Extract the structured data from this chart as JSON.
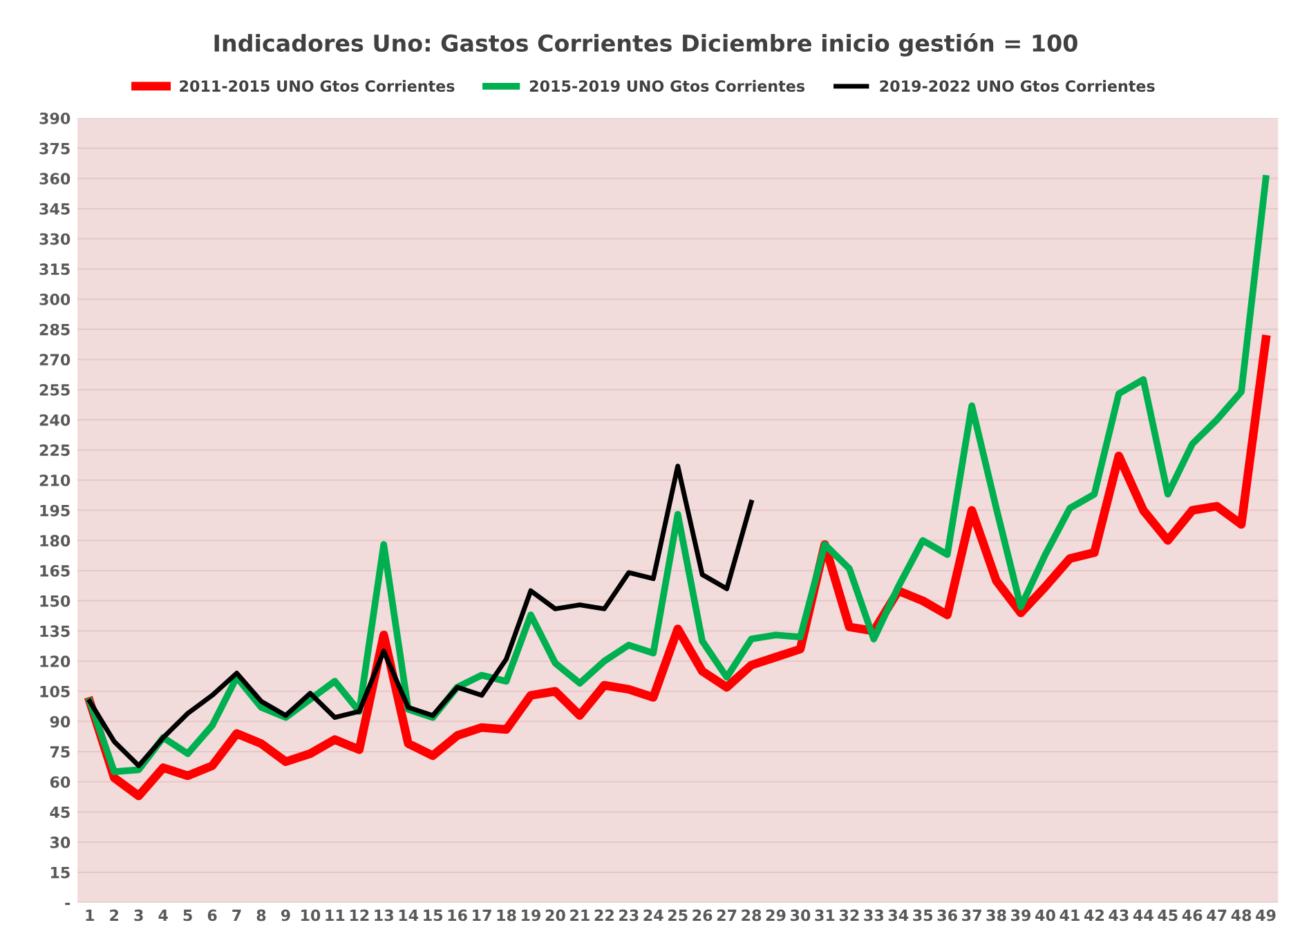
{
  "chart_data": {
    "type": "line",
    "title": "Indicadores Uno: Gastos Corrientes Diciembre inicio gestión = 100",
    "categories": [
      "1",
      "2",
      "3",
      "4",
      "5",
      "6",
      "7",
      "8",
      "9",
      "10",
      "11",
      "12",
      "13",
      "14",
      "15",
      "16",
      "17",
      "18",
      "19",
      "20",
      "21",
      "22",
      "23",
      "24",
      "25",
      "26",
      "27",
      "28",
      "29",
      "30",
      "31",
      "32",
      "33",
      "34",
      "35",
      "36",
      "37",
      "38",
      "39",
      "40",
      "41",
      "42",
      "43",
      "44",
      "45",
      "46",
      "47",
      "48",
      "49"
    ],
    "series": [
      {
        "name": "2011-2015 UNO Gtos Corrientes",
        "color": "#ff0000",
        "values": [
          100,
          62,
          53,
          67,
          63,
          68,
          84,
          79,
          70,
          74,
          81,
          76,
          133,
          79,
          73,
          83,
          87,
          86,
          103,
          105,
          93,
          108,
          106,
          102,
          136,
          115,
          107,
          118,
          122,
          126,
          178,
          137,
          135,
          155,
          150,
          143,
          195,
          160,
          144,
          157,
          171,
          174,
          222,
          195,
          180,
          195,
          197,
          188,
          280
        ]
      },
      {
        "name": "2015-2019 UNO Gtos Corrientes",
        "color": "#00b050",
        "values": [
          100,
          65,
          66,
          82,
          74,
          88,
          112,
          97,
          92,
          101,
          110,
          95,
          178,
          96,
          92,
          107,
          113,
          110,
          143,
          119,
          109,
          120,
          128,
          124,
          193,
          130,
          112,
          131,
          133,
          132,
          178,
          166,
          131,
          157,
          180,
          173,
          247,
          196,
          147,
          173,
          196,
          203,
          253,
          260,
          203,
          228,
          240,
          254,
          360
        ]
      },
      {
        "name": "2019-2022 UNO Gtos Corrientes",
        "color": "#000000",
        "values": [
          100,
          80,
          68,
          82,
          94,
          103,
          114,
          100,
          93,
          104,
          92,
          95,
          125,
          97,
          93,
          107,
          103,
          121,
          155,
          146,
          148,
          146,
          164,
          161,
          217,
          163,
          156,
          199,
          null,
          null,
          null,
          null,
          null,
          null,
          null,
          null,
          null,
          null,
          null,
          null,
          null,
          null,
          null,
          null,
          null,
          null,
          null,
          null,
          null
        ]
      }
    ],
    "ylim": [
      0,
      390
    ],
    "yticks": [
      {
        "value": 0,
        "label": "-"
      },
      15,
      30,
      45,
      60,
      75,
      90,
      105,
      120,
      135,
      150,
      165,
      180,
      195,
      210,
      225,
      240,
      255,
      270,
      285,
      300,
      315,
      330,
      345,
      360,
      375,
      390
    ],
    "grid": "y",
    "legend": "top",
    "line_style": "solid",
    "marker": "none"
  }
}
